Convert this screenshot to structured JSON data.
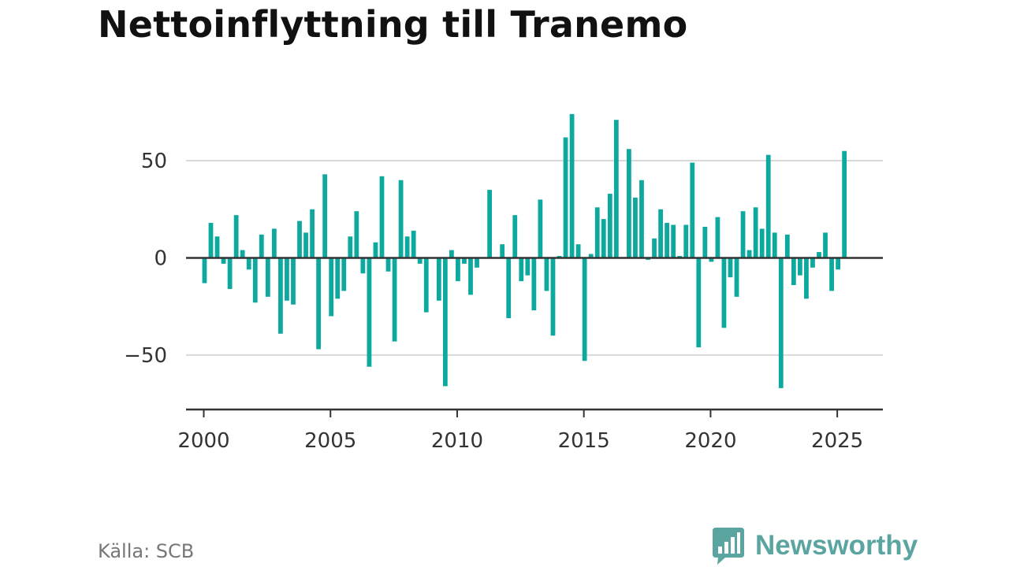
{
  "title": "Nettoinflyttning till Tranemo",
  "source": "Källa: SCB",
  "brand": {
    "name": "Newsworthy",
    "icon": "bar-chart-speech-bubble-icon",
    "color": "#5aa5a0"
  },
  "chart_data": {
    "type": "bar",
    "title": "Nettoinflyttning till Tranemo",
    "xlabel": "",
    "ylabel": "",
    "x_start": "2000-Q1",
    "frequency": "quarterly",
    "xlim": [
      1999.3,
      2026.8
    ],
    "ylim": [
      -78,
      80
    ],
    "yticks": [
      50,
      0,
      -50
    ],
    "ytick_labels": [
      "50",
      "0",
      "−50"
    ],
    "xticks": [
      2000,
      2005,
      2010,
      2015,
      2020,
      2025
    ],
    "xtick_labels": [
      "2000",
      "2005",
      "2010",
      "2015",
      "2020",
      "2025"
    ],
    "grid": true,
    "bar_color": "#0ea99e",
    "values": [
      -13,
      18,
      11,
      -3,
      -16,
      22,
      4,
      -6,
      -23,
      12,
      -20,
      15,
      -39,
      -22,
      -24,
      19,
      13,
      25,
      -47,
      43,
      -30,
      -21,
      -17,
      11,
      24,
      -8,
      -56,
      8,
      42,
      -7,
      -43,
      40,
      11,
      14,
      -3,
      -28,
      0,
      -22,
      -66,
      4,
      -12,
      -3,
      -19,
      -5,
      0,
      35,
      0,
      7,
      -31,
      22,
      -12,
      -9,
      -27,
      30,
      -17,
      -40,
      1,
      62,
      74,
      7,
      -53,
      2,
      26,
      20,
      33,
      71,
      0,
      56,
      31,
      40,
      -1,
      10,
      25,
      18,
      17,
      1,
      17,
      49,
      -46,
      16,
      -2,
      21,
      -36,
      -10,
      -20,
      24,
      4,
      26,
      15,
      53,
      13,
      -67,
      12,
      -14,
      -9,
      -21,
      -5,
      3,
      13,
      -17,
      -6,
      55
    ]
  }
}
